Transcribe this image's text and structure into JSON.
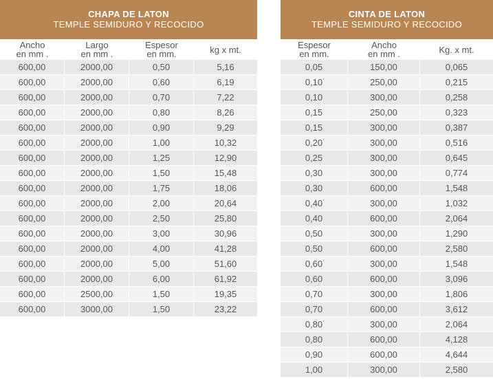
{
  "left": {
    "title": "CHAPA DE LATON",
    "subtitle": "TEMPLE SEMIDURO Y RECOCIDO",
    "columns": [
      "Ancho\nen mm .",
      "Largo\nen mm .",
      "Espesor\nen mm.",
      "kg x mt."
    ],
    "rows": [
      [
        "600,00",
        "2000,00",
        "0,50",
        "5,16"
      ],
      [
        "600,00",
        "2000,00",
        "0,60",
        "6,19"
      ],
      [
        "600,00",
        "2000,00",
        "0,70",
        "7,22"
      ],
      [
        "600,00",
        "2000,00",
        "0,80",
        "8,26"
      ],
      [
        "600,00",
        "2000,00",
        "0,90",
        "9,29"
      ],
      [
        "600,00",
        "2000,00",
        "1,00",
        "10,32"
      ],
      [
        "600,00",
        "2000,00",
        "1,25",
        "12,90"
      ],
      [
        "600,00",
        "2000,00",
        "1,50",
        "15,48"
      ],
      [
        "600,00",
        "2000,00",
        "1,75",
        "18,06"
      ],
      [
        "600,00",
        "2000,00",
        "2,00",
        "20,64"
      ],
      [
        "600,00",
        "2000,00",
        "2,50",
        "25,80"
      ],
      [
        "600,00",
        "2000,00",
        "3,00",
        "30,96"
      ],
      [
        "600,00",
        "2000,00",
        "4,00",
        "41,28"
      ],
      [
        "600,00",
        "2000,00",
        "5,00",
        "51,60"
      ],
      [
        "600,00",
        "2000,00",
        "6,00",
        "61,92"
      ],
      [
        "600,00",
        "2500,00",
        "1,50",
        "19,35"
      ],
      [
        "600,00",
        "3000,00",
        "1,50",
        "23,22"
      ]
    ]
  },
  "right": {
    "title": "CINTA DE LATON",
    "subtitle": "TEMPLE SEMIDURO Y RECOCIDO",
    "columns": [
      "Espesor\nen mm.",
      "Ancho\nen mm .",
      "Kg. x mt."
    ],
    "rows": [
      [
        "0,05",
        "150,00",
        "0,065"
      ],
      [
        "0,10",
        "250,00",
        "0,215"
      ],
      [
        "0,10",
        "300,00",
        "0,258"
      ],
      [
        "0,15",
        "250,00",
        "0,323"
      ],
      [
        "0,15",
        "300,00",
        "0,387"
      ],
      [
        "0,20",
        "300,00",
        "0,516"
      ],
      [
        "0,25",
        "300,00",
        "0,645"
      ],
      [
        "0,30",
        "300,00",
        "0,774"
      ],
      [
        "0,30",
        "600,00",
        "1,548"
      ],
      [
        "0,40",
        "300,00",
        "1,032"
      ],
      [
        "0,40",
        "600,00",
        "2,064"
      ],
      [
        "0,50",
        "300,00",
        "1,290"
      ],
      [
        "0,50",
        "600,00",
        "2,580"
      ],
      [
        "0,60",
        "300,00",
        "1,548"
      ],
      [
        "0,60",
        "600,00",
        "3,096"
      ],
      [
        "0,70",
        "300,00",
        "1,806"
      ],
      [
        "0,70",
        "600,00",
        "3,612"
      ],
      [
        "0,80",
        "300,00",
        "2,064"
      ],
      [
        "0,80",
        "600,00",
        "4,128"
      ],
      [
        "0,90",
        "600,00",
        "4,644"
      ],
      [
        "1,00",
        "300,00",
        "2,580"
      ]
    ]
  },
  "colors": {
    "header_bg": "#b98551",
    "row_odd": "#e8e8e8",
    "row_even": "#f2f2f2",
    "text": "#555555"
  }
}
